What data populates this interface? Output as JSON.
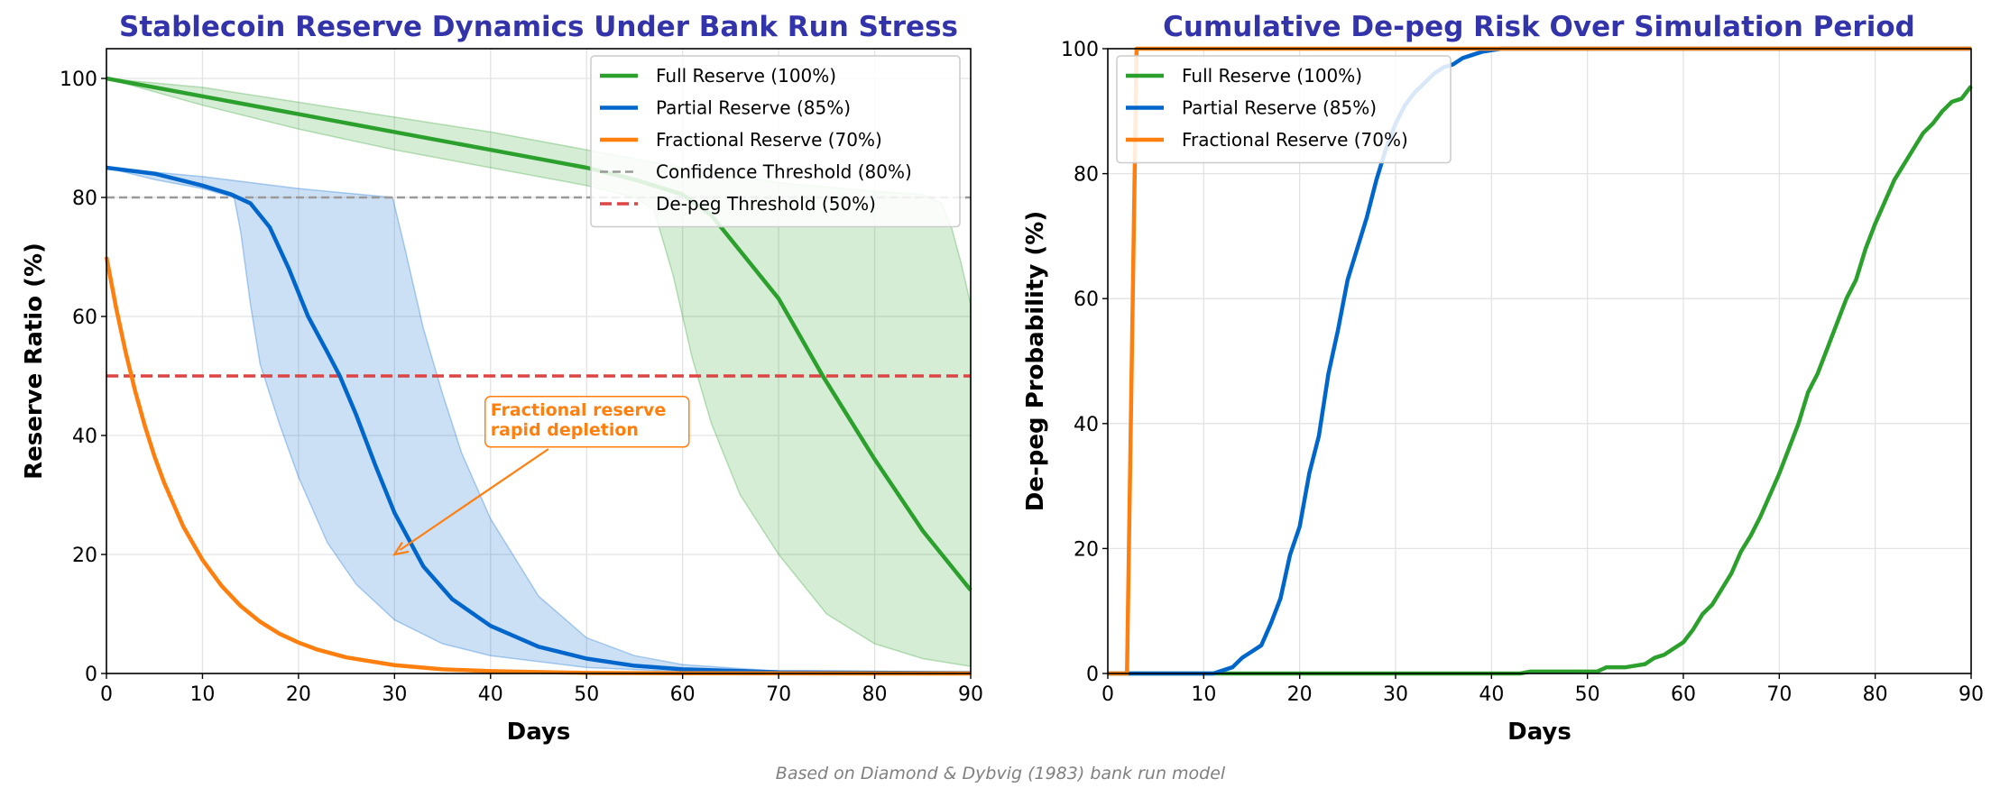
{
  "footer": "Based on Diamond & Dybvig (1983) bank run model",
  "chart_data": [
    {
      "type": "line",
      "title": "Stablecoin Reserve Dynamics Under Bank Run Stress",
      "xlabel": "Days",
      "ylabel": "Reserve Ratio (%)",
      "xlim": [
        0,
        90
      ],
      "ylim": [
        0,
        105
      ],
      "xticks": [
        0,
        10,
        20,
        30,
        40,
        50,
        60,
        70,
        80,
        90
      ],
      "yticks": [
        0,
        20,
        40,
        60,
        80,
        100
      ],
      "grid": true,
      "legend_position": "top-right",
      "series": [
        {
          "name": "Full Reserve (100%)",
          "color": "#2ca02c",
          "x": [
            0,
            10,
            20,
            30,
            40,
            50,
            55,
            60,
            63,
            66,
            70,
            74.6,
            80,
            85,
            90
          ],
          "y": [
            100,
            97,
            94,
            91,
            88,
            85,
            83,
            80.5,
            77,
            71,
            63,
            50,
            36,
            24,
            14
          ],
          "band": {
            "upper_x": [
              0,
              10,
              20,
              30,
              40,
              50,
              60,
              70,
              80,
              85,
              87,
              88,
              89,
              90
            ],
            "upper_y": [
              100,
              98.5,
              96,
              93.5,
              91,
              88,
              85,
              82.5,
              81,
              80.5,
              79,
              75,
              69,
              62
            ],
            "lower_x": [
              0,
              10,
              20,
              30,
              40,
              50,
              55,
              57,
              59,
              61,
              63,
              66,
              70,
              75,
              80,
              85,
              90
            ],
            "lower_y": [
              100,
              95.5,
              91.5,
              88,
              85,
              82,
              80,
              78,
              67,
              53,
              42,
              30,
              20,
              10,
              5,
              2.5,
              1.2
            ]
          }
        },
        {
          "name": "Partial Reserve (85%)",
          "color": "#0066cc",
          "x": [
            0,
            5,
            10,
            13,
            15,
            17,
            19,
            21,
            23,
            24.3,
            26,
            28,
            30,
            33,
            36,
            40,
            45,
            50,
            55,
            60,
            70,
            90
          ],
          "y": [
            85,
            84,
            82,
            80.5,
            79,
            75,
            68,
            60,
            54,
            50,
            43.5,
            35,
            27,
            18,
            12.5,
            8,
            4.5,
            2.5,
            1.3,
            0.7,
            0.2,
            0.05
          ],
          "band": {
            "upper_x": [
              0,
              10,
              20,
              29.8,
              31,
              32,
              33,
              35,
              37,
              40,
              45,
              50,
              55,
              60,
              70,
              90
            ],
            "upper_y": [
              85,
              83.5,
              81.5,
              80,
              72,
              65,
              58,
              47,
              37,
              26,
              13,
              6,
              3,
              1.5,
              0.4,
              0.1
            ],
            "lower_x": [
              0,
              5,
              10,
              13.3,
              14,
              15,
              16,
              18,
              20,
              23,
              26,
              30,
              35,
              40,
              50,
              60,
              90
            ],
            "lower_y": [
              85,
              83,
              81.5,
              80,
              74,
              62,
              52,
              42,
              33,
              22,
              15,
              9,
              5,
              3,
              1,
              0.3,
              0
            ]
          }
        },
        {
          "name": "Fractional Reserve (70%)",
          "color": "#ff7f0e",
          "x": [
            0,
            1,
            2,
            3,
            4,
            5,
            6,
            8,
            10,
            12,
            14,
            16,
            18,
            20,
            22,
            25,
            30,
            35,
            40,
            50,
            60,
            90
          ],
          "y": [
            70,
            61.5,
            54,
            47.4,
            41.6,
            36.5,
            32.1,
            24.7,
            19.1,
            14.7,
            11.3,
            8.7,
            6.7,
            5.2,
            4.0,
            2.7,
            1.4,
            0.7,
            0.4,
            0.1,
            0.03,
            0
          ]
        }
      ],
      "hlines": [
        {
          "name": "Confidence Threshold (80%)",
          "y": 80,
          "color": "#999999",
          "style": "dashed"
        },
        {
          "name": "De-peg Threshold (50%)",
          "y": 50,
          "color": "#dd4444",
          "style": "dashed"
        }
      ],
      "annotation": {
        "text_lines": [
          "Fractional reserve",
          "rapid depletion"
        ],
        "xy": [
          30,
          20
        ],
        "xytext": [
          40,
          42
        ],
        "color": "#ff7f0e"
      }
    },
    {
      "type": "line",
      "title": "Cumulative De-peg Risk Over Simulation Period",
      "xlabel": "Days",
      "ylabel": "De-peg Probability (%)",
      "xlim": [
        0,
        90
      ],
      "ylim": [
        0,
        100
      ],
      "xticks": [
        0,
        10,
        20,
        30,
        40,
        50,
        60,
        70,
        80,
        90
      ],
      "yticks": [
        0,
        20,
        40,
        60,
        80,
        100
      ],
      "grid": true,
      "legend_position": "top-left",
      "series": [
        {
          "name": "Full Reserve (100%)",
          "color": "#2ca02c",
          "x": [
            0,
            43,
            44,
            51,
            52,
            54,
            56,
            57,
            58,
            59,
            60,
            61,
            62,
            63,
            64,
            65,
            66,
            67,
            68,
            69,
            70,
            71,
            72,
            73,
            74,
            75,
            76,
            77,
            78,
            79,
            80,
            81,
            82,
            83,
            84,
            85,
            86,
            87,
            88,
            89,
            90
          ],
          "y": [
            0,
            0,
            0.3,
            0.3,
            1,
            1,
            1.5,
            2.5,
            3,
            4,
            5,
            7,
            9.5,
            11,
            13.5,
            16,
            19.5,
            22,
            25,
            28.5,
            32,
            36,
            40,
            45,
            48,
            52,
            56,
            60,
            63,
            68,
            72,
            75.5,
            79,
            81.5,
            84,
            86.5,
            88,
            90,
            91.5,
            92,
            94
          ]
        },
        {
          "name": "Partial Reserve (85%)",
          "color": "#0066cc",
          "x": [
            0,
            11,
            12,
            13,
            14,
            15,
            16,
            17,
            18,
            19,
            20,
            21,
            22,
            23,
            24,
            25,
            26,
            27,
            28,
            29,
            30,
            31,
            32,
            33,
            34,
            35,
            36,
            37,
            38,
            39,
            41,
            90
          ],
          "y": [
            0,
            0,
            0.5,
            1,
            2.5,
            3.5,
            4.5,
            8,
            12,
            19,
            23.5,
            32,
            38,
            48,
            55,
            63,
            68,
            73,
            79,
            84,
            88,
            91,
            93,
            94.5,
            96,
            97,
            97.5,
            98.5,
            99,
            99.5,
            100,
            100
          ]
        },
        {
          "name": "Fractional Reserve (70%)",
          "color": "#ff7f0e",
          "x": [
            0,
            2,
            3,
            90
          ],
          "y": [
            0,
            0,
            100,
            100
          ]
        }
      ]
    }
  ]
}
